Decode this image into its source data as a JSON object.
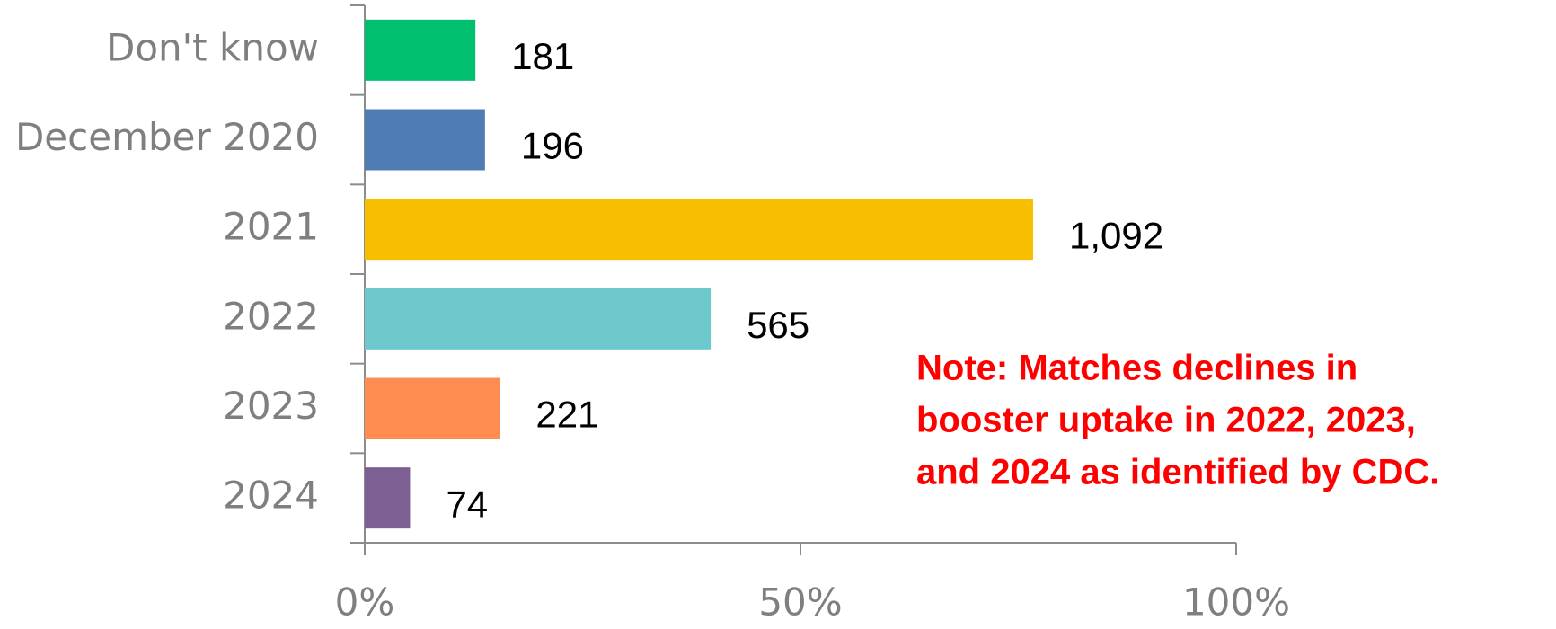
{
  "chart_data": {
    "type": "barh",
    "categories": [
      "Don't know",
      "December 2020",
      "2021",
      "2022",
      "2023",
      "2024"
    ],
    "values": [
      12.7,
      13.8,
      76.7,
      39.7,
      15.5,
      5.2
    ],
    "counts": [
      "181",
      "196",
      "1,092",
      "565",
      "221",
      "74"
    ],
    "colors": [
      "#00c06f",
      "#4f7cb5",
      "#f7bf00",
      "#6ec9cc",
      "#ff8c50",
      "#7d5f93"
    ],
    "xlim": [
      0,
      100
    ],
    "xticks": [
      {
        "value": 0,
        "label": "0%"
      },
      {
        "value": 50,
        "label": "50%"
      },
      {
        "value": 100,
        "label": "100%"
      }
    ],
    "grid": false,
    "annotation": [
      "Note:  Matches declines in",
      "booster uptake in 2022, 2023,",
      "and 2024 as identified by CDC."
    ],
    "annotation_color": "#ff0000"
  }
}
